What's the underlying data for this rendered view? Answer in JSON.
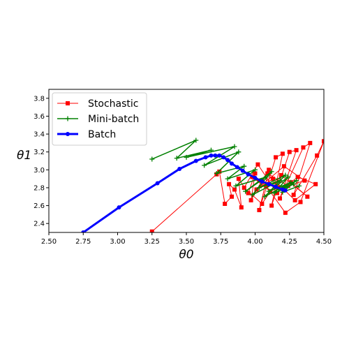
{
  "chart_data": {
    "type": "line",
    "title": "",
    "xlabel": "θ0",
    "ylabel": "θ1",
    "xlim": [
      2.5,
      4.5
    ],
    "ylim": [
      2.3,
      3.9
    ],
    "xticks": [
      "2.50",
      "2.75",
      "3.00",
      "3.25",
      "3.50",
      "3.75",
      "4.00",
      "4.25",
      "4.50"
    ],
    "yticks": [
      "2.4",
      "2.6",
      "2.8",
      "3.0",
      "3.2",
      "3.4",
      "3.6",
      "3.8"
    ],
    "grid": false,
    "legend_position": "top-left",
    "series": [
      {
        "name": "Stochastic",
        "color": "#ff0000",
        "marker": "square",
        "line_width": 1,
        "x": [
          3.25,
          3.72,
          3.74,
          3.78,
          3.83,
          3.81,
          3.85,
          3.9,
          3.88,
          3.95,
          4.0,
          3.97,
          4.05,
          4.1,
          4.03,
          4.15,
          4.2,
          4.12,
          4.25,
          4.3,
          4.18,
          4.35,
          4.4,
          4.28,
          4.45,
          4.5,
          4.33,
          4.22,
          4.08,
          3.98,
          4.11,
          4.26,
          4.38,
          4.19,
          4.05,
          3.92,
          4.02,
          4.16,
          4.31,
          4.44,
          4.29,
          4.13,
          4.01,
          4.21,
          4.36,
          4.24,
          4.09,
          4.17
        ],
        "y": [
          2.31,
          2.95,
          2.98,
          2.62,
          2.7,
          2.84,
          2.78,
          2.58,
          2.9,
          2.74,
          2.96,
          2.66,
          2.88,
          3.0,
          2.55,
          3.14,
          3.18,
          2.6,
          3.2,
          3.22,
          2.68,
          3.25,
          3.3,
          2.72,
          3.16,
          3.32,
          2.64,
          2.52,
          2.82,
          2.92,
          2.76,
          2.86,
          2.7,
          2.94,
          2.62,
          2.8,
          3.06,
          2.74,
          2.92,
          2.84,
          2.66,
          2.9,
          2.78,
          3.04,
          2.88,
          2.82,
          2.96,
          2.8
        ]
      },
      {
        "name": "Mini-batch",
        "color": "#008000",
        "marker": "plus",
        "line_width": 1.5,
        "x": [
          3.25,
          3.57,
          3.43,
          3.68,
          3.5,
          3.85,
          3.63,
          3.88,
          3.72,
          3.92,
          3.8,
          4.0,
          3.86,
          4.08,
          3.93,
          4.12,
          3.98,
          4.18,
          4.03,
          4.22,
          4.07,
          4.26,
          4.1,
          4.24,
          4.14,
          4.28,
          4.17,
          4.3,
          4.2,
          4.32
        ],
        "y": [
          3.12,
          3.33,
          3.13,
          3.22,
          3.14,
          3.26,
          3.05,
          3.2,
          2.96,
          3.04,
          2.9,
          3.0,
          2.82,
          2.92,
          2.76,
          2.98,
          2.72,
          2.88,
          2.8,
          2.94,
          2.7,
          2.86,
          2.76,
          2.92,
          2.74,
          2.84,
          2.78,
          2.88,
          2.75,
          2.82
        ]
      },
      {
        "name": "Batch",
        "color": "#0000ff",
        "marker": "circle",
        "line_width": 3,
        "x": [
          2.75,
          3.01,
          3.29,
          3.45,
          3.57,
          3.64,
          3.68,
          3.71,
          3.74,
          3.77,
          3.8,
          3.83,
          3.87,
          3.91,
          3.95,
          4.0,
          4.05,
          4.1,
          4.15,
          4.2,
          4.22
        ],
        "y": [
          2.3,
          2.58,
          2.85,
          3.01,
          3.1,
          3.14,
          3.16,
          3.16,
          3.16,
          3.14,
          3.11,
          3.07,
          3.03,
          2.99,
          2.95,
          2.91,
          2.87,
          2.84,
          2.81,
          2.78,
          2.77
        ]
      }
    ]
  }
}
